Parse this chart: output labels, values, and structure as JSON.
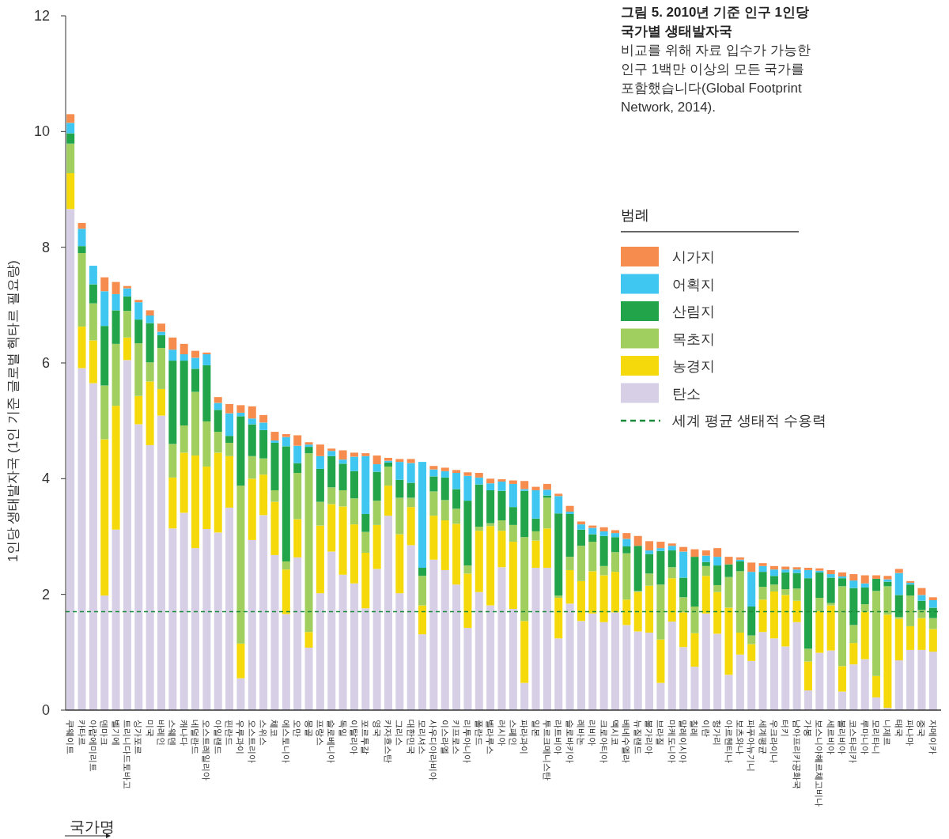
{
  "chart_data": {
    "type": "bar",
    "stacked": true,
    "title": "그림 5. 2010년 기준 인구 1인당 국가별 생태발자국",
    "subtitle": "비교를 위해 자료 입수가 가능한 인구 1백만 이상의 모든 국가를 포함했습니다(Global Footprint Network, 2014).",
    "ylabel": "1인당 생태발자국 (1인 기준 글로벌 헥타르 필요량)",
    "xlabel": "국가명",
    "legend_title": "범례",
    "legend": "right",
    "ylim": [
      0,
      12
    ],
    "yticks": [
      0,
      2,
      4,
      6,
      8,
      10,
      12
    ],
    "categories": [
      "쿠웨이트",
      "카타르",
      "아랍에미리트",
      "덴마크",
      "벨기에",
      "트리니다드토바고",
      "싱가포르",
      "미국",
      "바레인",
      "스웨덴",
      "캐나다",
      "네덜란드",
      "오스트레일리아",
      "아일랜드",
      "핀란드",
      "우루과이",
      "오스트리아",
      "스위스",
      "체코",
      "에스토니아",
      "오만",
      "몽골",
      "프랑스",
      "슬로베니아",
      "독일",
      "이탈리아",
      "포르투갈",
      "영국",
      "카자흐스탄",
      "그리스",
      "대한민국",
      "모리셔스",
      "사우디아라비아",
      "이스라엘",
      "키프로스",
      "리투아니아",
      "폴란드",
      "벨라루스",
      "러시아",
      "스페인",
      "파라과이",
      "일본",
      "투르크메니스탄",
      "라트비아",
      "슬로바키아",
      "레바논",
      "리비아",
      "크로아티아",
      "멕시코",
      "베네수엘라",
      "뉴질랜드",
      "불가리아",
      "브라질",
      "마케도니아",
      "말레이시아",
      "칠레",
      "이란",
      "헝가리",
      "아르헨티나",
      "보츠와나",
      "파푸아뉴기니",
      "세계평균",
      "우크라이나",
      "터키",
      "남아프리카공화국",
      "가봉",
      "보스니아헤르체고비나",
      "세르비아",
      "볼리비아",
      "코스타리카",
      "루마니아",
      "모리타니",
      "니제르",
      "태국",
      "파나마",
      "중국",
      "자메이카"
    ],
    "series": [
      {
        "name": "탄소",
        "color": "#d6cfe5",
        "values": [
          8.66,
          5.91,
          5.65,
          1.98,
          3.12,
          6.05,
          4.94,
          4.58,
          5.09,
          3.14,
          3.41,
          2.8,
          3.13,
          3.07,
          3.5,
          0.55,
          2.94,
          3.37,
          2.68,
          1.66,
          2.64,
          1.08,
          2.02,
          2.74,
          2.34,
          2.19,
          1.76,
          2.44,
          3.36,
          2.02,
          2.85,
          1.31,
          2.6,
          2.42,
          2.17,
          1.42,
          2.04,
          1.81,
          2.47,
          1.75,
          0.47,
          2.46,
          2.46,
          1.24,
          1.84,
          1.54,
          1.67,
          1.52,
          1.69,
          1.47,
          1.36,
          1.34,
          0.47,
          1.53,
          1.09,
          0.75,
          1.67,
          1.32,
          0.61,
          0.96,
          0.85,
          1.35,
          1.24,
          1.1,
          1.52,
          0.34,
          0.99,
          1.03,
          0.32,
          0.79,
          0.88,
          0.22,
          0.04,
          0.86,
          1.04,
          1.04,
          1.01
        ]
      },
      {
        "name": "농경지",
        "color": "#f5d90a",
        "values": [
          0.62,
          0.72,
          0.74,
          2.7,
          2.14,
          0.39,
          0.49,
          1.1,
          0.46,
          0.88,
          1.04,
          1.6,
          1.08,
          1.38,
          0.89,
          0.6,
          1.06,
          0.7,
          0.92,
          0.77,
          0.66,
          0.27,
          1.17,
          0.82,
          1.18,
          1.02,
          0.96,
          0.76,
          0.52,
          1.02,
          0.66,
          0.5,
          0.76,
          0.86,
          1.05,
          0.94,
          1.06,
          1.37,
          0.63,
          1.16,
          1.07,
          0.47,
          0.68,
          0.7,
          0.58,
          0.69,
          0.73,
          0.81,
          0.7,
          0.44,
          0.68,
          0.81,
          0.75,
          0.75,
          0.6,
          0.58,
          0.65,
          0.72,
          1.16,
          0.38,
          0.29,
          0.56,
          0.81,
          0.89,
          0.37,
          0.5,
          0.72,
          0.78,
          0.44,
          0.37,
          0.82,
          0.37,
          1.61,
          0.72,
          0.41,
          0.55,
          0.39
        ]
      },
      {
        "name": "목초지",
        "color": "#a0cf5f",
        "values": [
          0.51,
          1.27,
          0.64,
          0.93,
          1.07,
          0.46,
          0.91,
          0.33,
          0.71,
          0.58,
          0.47,
          1.1,
          0.78,
          0.36,
          0.23,
          2.73,
          0.39,
          0.28,
          0.2,
          0.14,
          0.8,
          3.09,
          0.41,
          0.29,
          0.28,
          0.45,
          0.36,
          0.42,
          0.33,
          0.63,
          0.16,
          0.51,
          0.42,
          0.35,
          0.26,
          0.14,
          0.07,
          0.05,
          0.18,
          0.29,
          1.45,
          0.16,
          0.53,
          0.04,
          0.23,
          0.61,
          0.51,
          0.16,
          0.34,
          0.8,
          0.02,
          0.21,
          0.95,
          0.19,
          0.26,
          0.46,
          0.17,
          0.12,
          0.53,
          1.06,
          0.15,
          0.22,
          0.12,
          0.1,
          0.21,
          0.22,
          0.23,
          0.04,
          1.38,
          0.31,
          0.13,
          1.47,
          0.49,
          0.03,
          0.53,
          0.14,
          0.19
        ]
      },
      {
        "name": "산림지",
        "color": "#22a54a",
        "values": [
          0.18,
          0.12,
          0.33,
          1.03,
          0.58,
          0.25,
          0.41,
          0.68,
          0.22,
          1.44,
          1.12,
          0.4,
          0.97,
          0.38,
          0.12,
          1.2,
          0.55,
          0.49,
          0.82,
          1.99,
          0.17,
          0.11,
          0.57,
          0.54,
          0.46,
          0.47,
          0.31,
          0.5,
          0.07,
          0.31,
          0.26,
          0.14,
          0.26,
          0.39,
          0.34,
          1.12,
          0.73,
          0.57,
          0.51,
          0.31,
          0.8,
          0.22,
          0.04,
          1.42,
          0.74,
          0.28,
          0.13,
          0.52,
          0.26,
          0.12,
          0.78,
          0.34,
          0.58,
          0.29,
          0.34,
          0.86,
          0.07,
          0.34,
          0.22,
          0.17,
          0.5,
          0.26,
          0.15,
          0.29,
          0.27,
          1.22,
          0.44,
          0.44,
          0.14,
          0.64,
          0.29,
          0.21,
          0.08,
          0.38,
          0.19,
          0.16,
          0.18
        ]
      },
      {
        "name": "어획지",
        "color": "#3fc7f2",
        "values": [
          0.18,
          0.3,
          0.32,
          0.6,
          0.28,
          0.14,
          0.3,
          0.13,
          0.06,
          0.19,
          0.11,
          0.19,
          0.19,
          0.12,
          0.39,
          0.06,
          0.1,
          0.13,
          0.04,
          0.16,
          0.3,
          0.04,
          0.22,
          0.09,
          0.07,
          0.25,
          1.0,
          0.13,
          0.03,
          0.31,
          0.34,
          1.83,
          0.12,
          0.11,
          0.28,
          0.43,
          0.12,
          0.12,
          0.16,
          0.4,
          0.03,
          0.49,
          0.1,
          0.3,
          0.04,
          0.09,
          0.11,
          0.08,
          0.07,
          0.13,
          0,
          0.06,
          0.05,
          0.08,
          0.45,
          0,
          0.11,
          0.15,
          0,
          0.03,
          0.6,
          0.1,
          0.11,
          0.05,
          0.06,
          0.14,
          0.03,
          0.06,
          0.03,
          0.13,
          0.07,
          0,
          0.04,
          0.38,
          0.03,
          0.1,
          0.13
        ]
      },
      {
        "name": "시가지",
        "color": "#f68d4f",
        "values": [
          0.15,
          0.1,
          0,
          0.24,
          0.21,
          0.04,
          0.04,
          0.09,
          0.14,
          0.21,
          0.18,
          0.12,
          0.03,
          0.1,
          0.16,
          0.13,
          0.21,
          0.13,
          0.15,
          0.05,
          0.18,
          0.04,
          0.2,
          0.04,
          0.16,
          0.07,
          0.05,
          0.15,
          0.05,
          0.05,
          0.07,
          0,
          0.06,
          0.06,
          0.05,
          0.06,
          0.08,
          0.08,
          0.04,
          0.06,
          0.14,
          0.06,
          0.1,
          0.04,
          0.1,
          0.05,
          0.04,
          0.07,
          0.05,
          0.1,
          0.17,
          0.16,
          0.11,
          0.04,
          0.08,
          0.13,
          0.09,
          0.15,
          0.13,
          0.04,
          0.16,
          0.05,
          0.06,
          0.05,
          0.04,
          0.04,
          0.04,
          0.07,
          0.07,
          0.11,
          0.14,
          0.06,
          0.06,
          0.07,
          0.03,
          0.12,
          0.05
        ]
      }
    ],
    "ref_lines": [
      {
        "axis": "y",
        "value": 1.7,
        "label": "세계 평균 생태적 수용력",
        "color": "#1a8a3a",
        "line_style": "dashed"
      }
    ]
  }
}
